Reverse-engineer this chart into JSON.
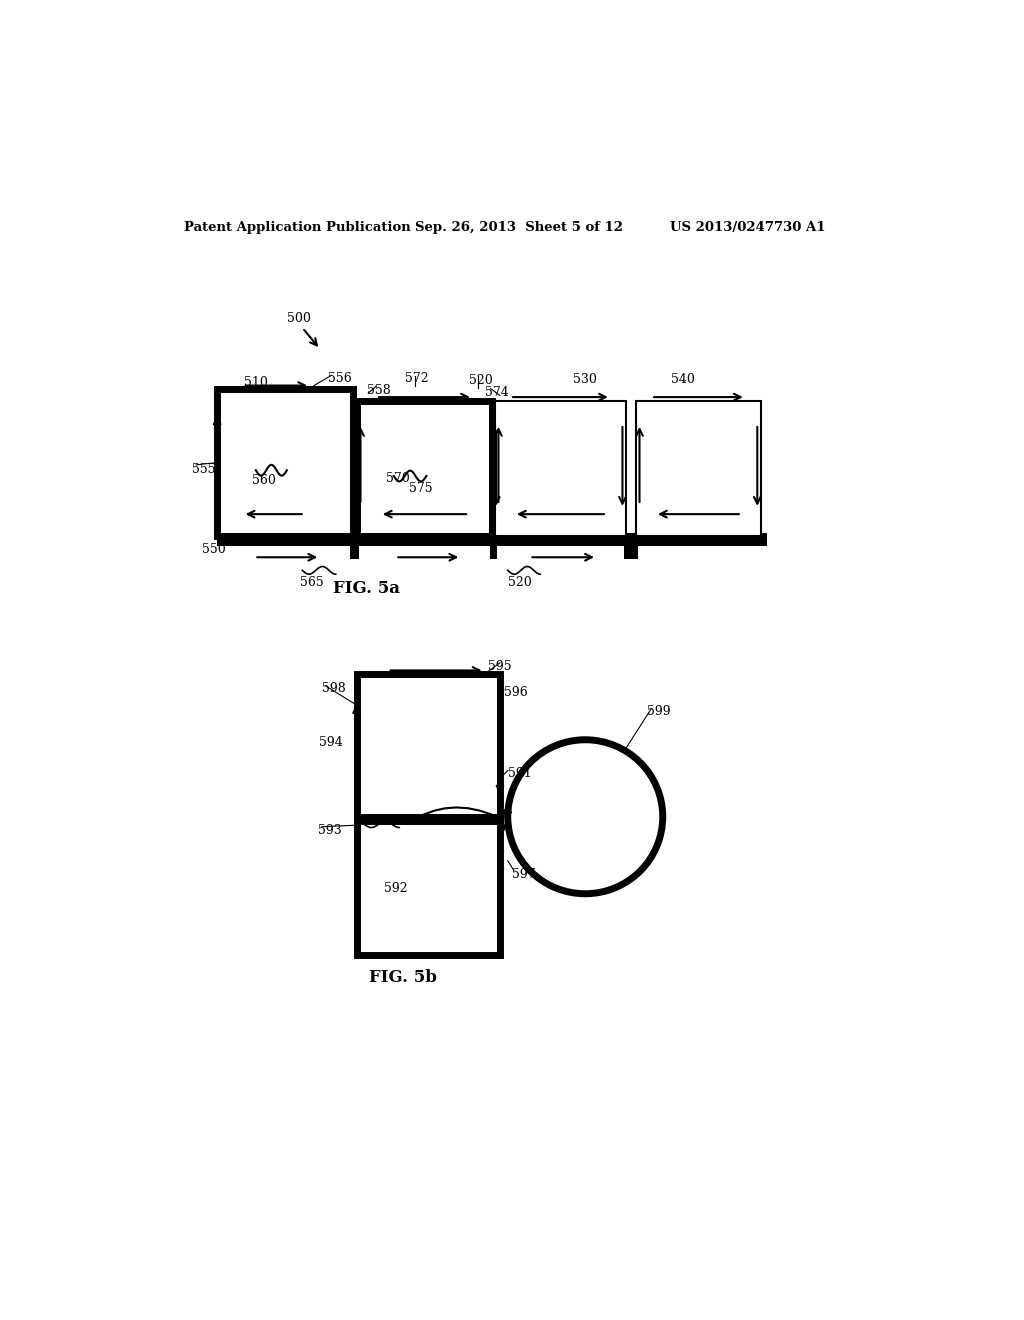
{
  "bg_color": "#ffffff",
  "header_left": "Patent Application Publication",
  "header_mid": "Sep. 26, 2013  Sheet 5 of 12",
  "header_right": "US 2013/0247730 A1",
  "fig5a_label": "FIG. 5a",
  "fig5b_label": "FIG. 5b"
}
